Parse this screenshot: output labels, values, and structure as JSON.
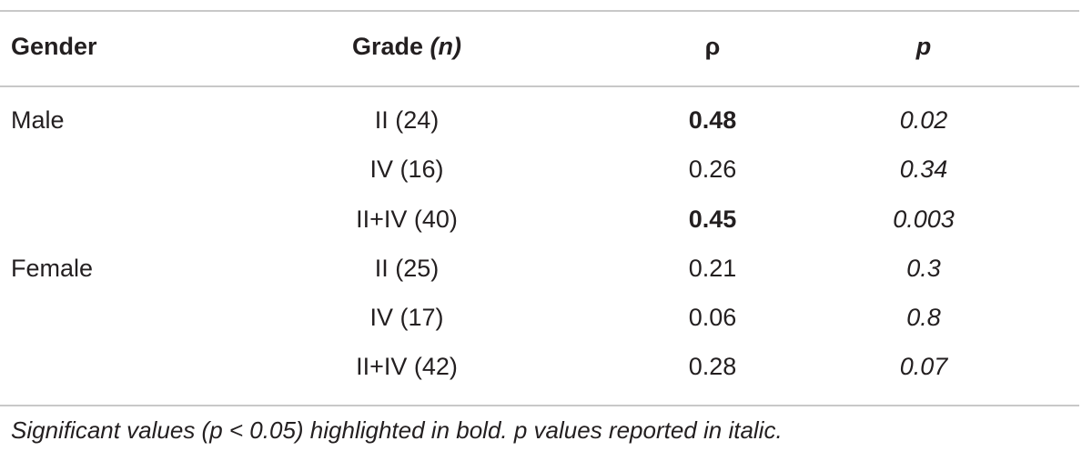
{
  "table": {
    "headers": {
      "gender": "Gender",
      "grade": "Grade",
      "grade_n": "(n)",
      "rho": "ρ",
      "p": "p"
    },
    "rows": [
      {
        "gender": "Male",
        "grade": "II (24)",
        "rho": "0.48",
        "p": "0.02",
        "significant": true
      },
      {
        "gender": "",
        "grade": "IV (16)",
        "rho": "0.26",
        "p": "0.34",
        "significant": false
      },
      {
        "gender": "",
        "grade": "II+IV (40)",
        "rho": "0.45",
        "p": "0.003",
        "significant": true
      },
      {
        "gender": "Female",
        "grade": "II (25)",
        "rho": "0.21",
        "p": "0.3",
        "significant": false
      },
      {
        "gender": "",
        "grade": "IV (17)",
        "rho": "0.06",
        "p": "0.8",
        "significant": false
      },
      {
        "gender": "",
        "grade": "II+IV (42)",
        "rho": "0.28",
        "p": "0.07",
        "significant": false
      }
    ],
    "footnote": "Significant values (p < 0.05) highlighted in bold. p values reported in italic."
  }
}
